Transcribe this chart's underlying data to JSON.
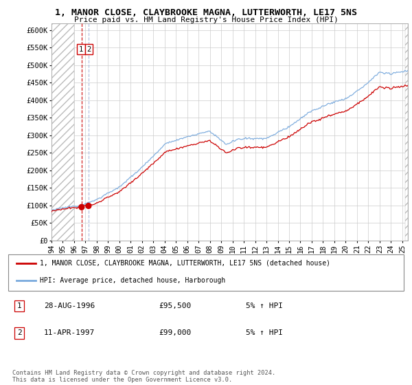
{
  "title": "1, MANOR CLOSE, CLAYBROOKE MAGNA, LUTTERWORTH, LE17 5NS",
  "subtitle": "Price paid vs. HM Land Registry's House Price Index (HPI)",
  "sale1_date": 1996.66,
  "sale1_price": 95500,
  "sale2_date": 1997.27,
  "sale2_price": 99000,
  "legend_line1": "1, MANOR CLOSE, CLAYBROOKE MAGNA, LUTTERWORTH, LE17 5NS (detached house)",
  "legend_line2": "HPI: Average price, detached house, Harborough",
  "table_rows": [
    {
      "num": "1",
      "date": "28-AUG-1996",
      "price": "£95,500",
      "note": "5% ↑ HPI"
    },
    {
      "num": "2",
      "date": "11-APR-1997",
      "price": "£99,000",
      "note": "5% ↑ HPI"
    }
  ],
  "footnote": "Contains HM Land Registry data © Crown copyright and database right 2024.\nThis data is licensed under the Open Government Licence v3.0.",
  "hpi_color": "#7aaadd",
  "price_color": "#cc0000",
  "marker_color": "#cc0000",
  "dashed_color1": "#cc0000",
  "dashed_color2": "#aabbdd",
  "table_border_color": "#cc0000",
  "ylim": [
    0,
    620000
  ],
  "xlim_start": 1994.0,
  "xlim_end": 2025.5,
  "yticks": [
    0,
    50000,
    100000,
    150000,
    200000,
    250000,
    300000,
    350000,
    400000,
    450000,
    500000,
    550000,
    600000
  ],
  "ytick_labels": [
    "£0",
    "£50K",
    "£100K",
    "£150K",
    "£200K",
    "£250K",
    "£300K",
    "£350K",
    "£400K",
    "£450K",
    "£500K",
    "£550K",
    "£600K"
  ],
  "xtick_years": [
    1994,
    1995,
    1996,
    1997,
    1998,
    1999,
    2000,
    2001,
    2002,
    2003,
    2004,
    2005,
    2006,
    2007,
    2008,
    2009,
    2010,
    2011,
    2012,
    2013,
    2014,
    2015,
    2016,
    2017,
    2018,
    2019,
    2020,
    2021,
    2022,
    2023,
    2024,
    2025
  ],
  "hatch_region_end": 1996.0,
  "hatch_region_start2": 2025.25
}
